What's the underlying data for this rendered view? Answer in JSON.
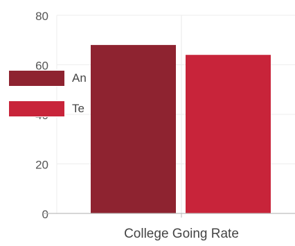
{
  "chart_data": {
    "type": "bar",
    "categories": [
      "College Going Rate"
    ],
    "series": [
      {
        "name": "An",
        "values": [
          68
        ],
        "color": "#8e2330"
      },
      {
        "name": "Te",
        "values": [
          64
        ],
        "color": "#c8243a"
      }
    ],
    "ylim": [
      0,
      80
    ],
    "yticks": [
      "0",
      "20",
      "40",
      "60",
      "80"
    ],
    "grid": true,
    "legend_position": "left"
  }
}
